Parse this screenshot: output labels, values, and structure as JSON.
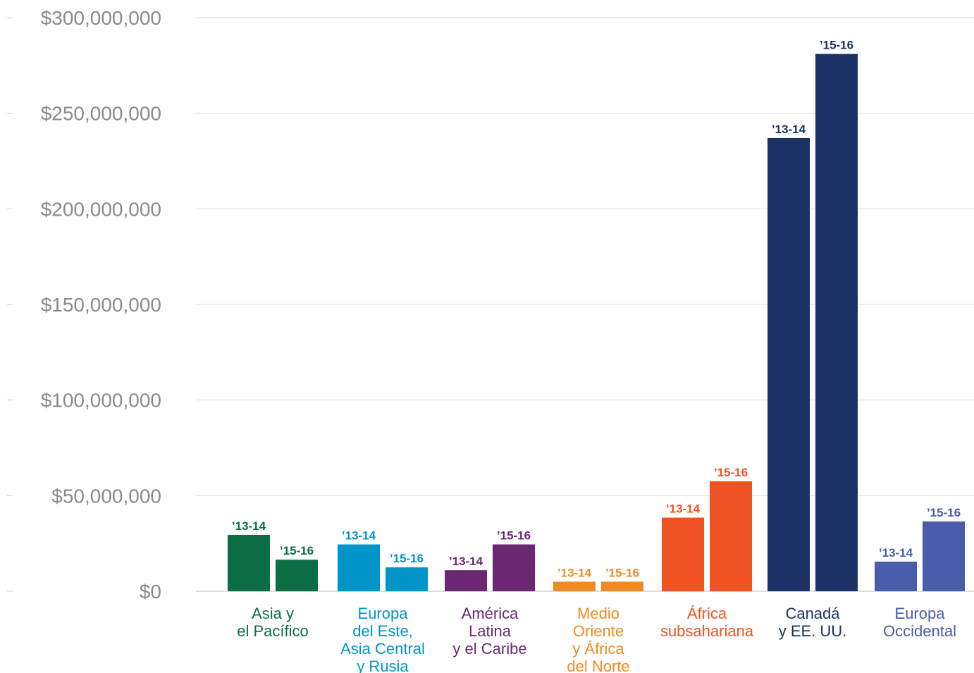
{
  "chart_data": {
    "type": "bar",
    "title": "",
    "xlabel": "",
    "ylabel": "",
    "ylim": [
      0,
      300000000
    ],
    "y_ticks": [
      "$0",
      "$50,000,000",
      "$100,000,000",
      "$150,000,000",
      "$200,000,000",
      "$250,000,000",
      "$300,000,000"
    ],
    "grid": true,
    "series_labels": [
      "'13-14",
      "'15-16"
    ],
    "categories": [
      {
        "lines": [
          "Asia y",
          "el Pacífico"
        ],
        "color": "#0b6e45",
        "values": [
          29500000,
          16500000
        ]
      },
      {
        "lines": [
          "Europa",
          "del Este,",
          "Asia Central",
          "y Rusia"
        ],
        "color": "#0095c8",
        "values": [
          24500000,
          12500000
        ]
      },
      {
        "lines": [
          "América",
          "Latina",
          "y el Caribe"
        ],
        "color": "#6a2873",
        "values": [
          11000000,
          24500000
        ]
      },
      {
        "lines": [
          "Medio",
          "Oriente",
          "y África",
          "del Norte"
        ],
        "color": "#f08a22",
        "values": [
          5000000,
          5000000
        ]
      },
      {
        "lines": [
          "África",
          "subsahariana"
        ],
        "color": "#f05323",
        "values": [
          38500000,
          57500000
        ]
      },
      {
        "lines": [
          "Canadá",
          "y EE. UU."
        ],
        "color": "#1c3166",
        "values": [
          237000000,
          281000000
        ]
      },
      {
        "lines": [
          "Europa",
          "Occidental"
        ],
        "color": "#4a5dab",
        "values": [
          15500000,
          36500000
        ]
      }
    ]
  }
}
